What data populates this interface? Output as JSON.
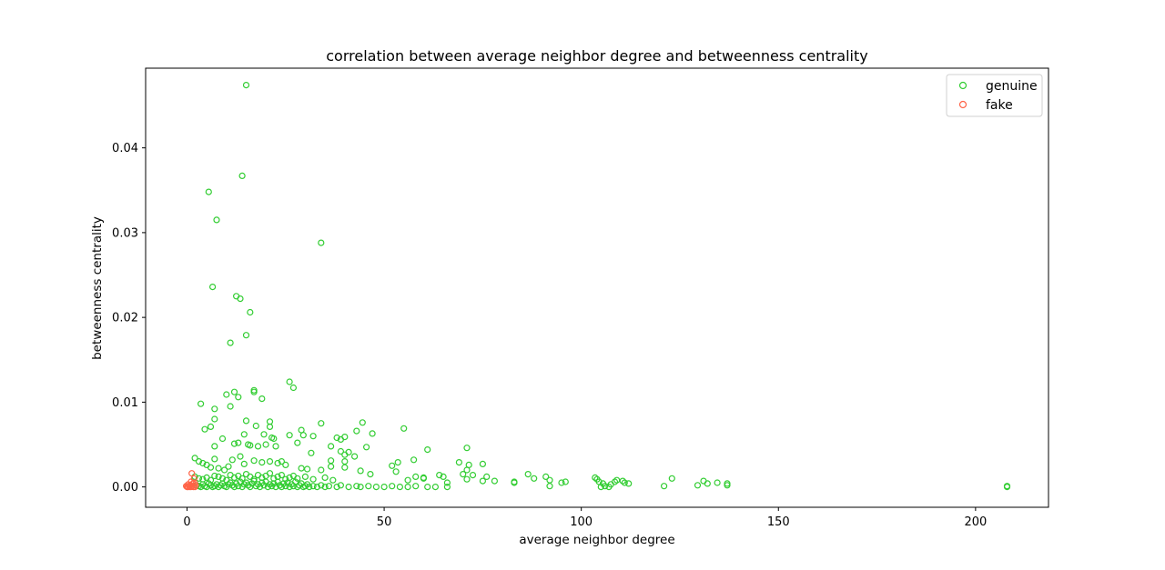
{
  "chart_data": {
    "type": "scatter",
    "title": "correlation between average neighbor degree and betweenness centrality",
    "xlabel": "average neighbor degree",
    "ylabel": "betweenness centrality",
    "xlim": [
      -10.5,
      218.5
    ],
    "ylim": [
      -0.0024,
      0.0494
    ],
    "x_ticks": [
      0,
      50,
      100,
      150,
      200
    ],
    "x_tick_labels": [
      "0",
      "50",
      "100",
      "150",
      "200"
    ],
    "y_ticks": [
      0.0,
      0.01,
      0.02,
      0.03,
      0.04
    ],
    "y_tick_labels": [
      "0.00",
      "0.01",
      "0.02",
      "0.03",
      "0.04"
    ],
    "grid": false,
    "legend": "top-right",
    "marker": "hollow-circle",
    "series": [
      {
        "name": "genuine",
        "color": "#32cd32",
        "points": [
          [
            15,
            0.0474
          ],
          [
            14,
            0.0367
          ],
          [
            5.5,
            0.0348
          ],
          [
            7.5,
            0.0315
          ],
          [
            34,
            0.0288
          ],
          [
            6.5,
            0.0236
          ],
          [
            12.5,
            0.0225
          ],
          [
            13.5,
            0.0222
          ],
          [
            16,
            0.0206
          ],
          [
            15,
            0.0179
          ],
          [
            11,
            0.017
          ],
          [
            26,
            0.0124
          ],
          [
            27,
            0.0117
          ],
          [
            17,
            0.0114
          ],
          [
            17,
            0.0112
          ],
          [
            12,
            0.0112
          ],
          [
            10,
            0.0109
          ],
          [
            13,
            0.0106
          ],
          [
            19,
            0.0104
          ],
          [
            3.5,
            0.0098
          ],
          [
            11,
            0.0095
          ],
          [
            7,
            0.0092
          ],
          [
            7,
            0.008
          ],
          [
            15,
            0.0078
          ],
          [
            21,
            0.0077
          ],
          [
            34,
            0.0075
          ],
          [
            44.5,
            0.0076
          ],
          [
            6,
            0.0071
          ],
          [
            4.5,
            0.0068
          ],
          [
            17.5,
            0.0072
          ],
          [
            21,
            0.0071
          ],
          [
            29,
            0.0067
          ],
          [
            43,
            0.0066
          ],
          [
            55,
            0.0069
          ],
          [
            14.5,
            0.0062
          ],
          [
            19.5,
            0.0062
          ],
          [
            26,
            0.0061
          ],
          [
            29.5,
            0.0061
          ],
          [
            32,
            0.006
          ],
          [
            40,
            0.0059
          ],
          [
            38,
            0.0058
          ],
          [
            47,
            0.0063
          ],
          [
            9,
            0.0057
          ],
          [
            22,
            0.0057
          ],
          [
            21.5,
            0.0058
          ],
          [
            39,
            0.0056
          ],
          [
            12,
            0.0051
          ],
          [
            13,
            0.0052
          ],
          [
            15.5,
            0.005
          ],
          [
            16,
            0.0049
          ],
          [
            18,
            0.0048
          ],
          [
            20,
            0.005
          ],
          [
            22.5,
            0.0048
          ],
          [
            28,
            0.0052
          ],
          [
            7,
            0.0048
          ],
          [
            36.5,
            0.0048
          ],
          [
            45.5,
            0.0047
          ],
          [
            61,
            0.0044
          ],
          [
            71,
            0.0046
          ],
          [
            31.5,
            0.004
          ],
          [
            39,
            0.0042
          ],
          [
            41,
            0.0041
          ],
          [
            42.5,
            0.0036
          ],
          [
            40,
            0.0038
          ],
          [
            13.5,
            0.0036
          ],
          [
            7,
            0.0033
          ],
          [
            11.5,
            0.0032
          ],
          [
            17,
            0.0031
          ],
          [
            21,
            0.003
          ],
          [
            24,
            0.003
          ],
          [
            36.5,
            0.0031
          ],
          [
            40,
            0.003
          ],
          [
            57.5,
            0.0032
          ],
          [
            52,
            0.0025
          ],
          [
            53.5,
            0.0029
          ],
          [
            69,
            0.0029
          ],
          [
            71.5,
            0.0026
          ],
          [
            75,
            0.0027
          ],
          [
            71,
            0.002
          ],
          [
            2,
            0.0034
          ],
          [
            3,
            0.003
          ],
          [
            4,
            0.0028
          ],
          [
            5,
            0.0026
          ],
          [
            6,
            0.0023
          ],
          [
            8,
            0.0022
          ],
          [
            9.5,
            0.002
          ],
          [
            10.5,
            0.0024
          ],
          [
            14.5,
            0.0027
          ],
          [
            19,
            0.0029
          ],
          [
            23,
            0.0028
          ],
          [
            25,
            0.0026
          ],
          [
            29,
            0.0022
          ],
          [
            30.5,
            0.0021
          ],
          [
            34,
            0.002
          ],
          [
            36.5,
            0.0024
          ],
          [
            40,
            0.0023
          ],
          [
            44,
            0.0019
          ],
          [
            46.5,
            0.0015
          ],
          [
            53,
            0.0018
          ],
          [
            58,
            0.0012
          ],
          [
            60,
            0.001
          ],
          [
            64,
            0.0014
          ],
          [
            65,
            0.0012
          ],
          [
            70,
            0.0015
          ],
          [
            72.5,
            0.0014
          ],
          [
            76,
            0.0012
          ],
          [
            56,
            0.0008
          ],
          [
            60,
            0.0011
          ],
          [
            66,
            0.0005
          ],
          [
            71,
            0.0009
          ],
          [
            75,
            0.0007
          ],
          [
            78,
            0.0007
          ],
          [
            86.5,
            0.0015
          ],
          [
            88,
            0.001
          ],
          [
            91,
            0.0012
          ],
          [
            92,
            0.0008
          ],
          [
            95,
            0.0005
          ],
          [
            96,
            0.0006
          ],
          [
            83,
            0.0005
          ],
          [
            83,
            0.0006
          ],
          [
            103.5,
            0.0011
          ],
          [
            104,
            0.0009
          ],
          [
            104.5,
            0.0006
          ],
          [
            105.5,
            0.0004
          ],
          [
            107.5,
            0.0003
          ],
          [
            108.5,
            0.0006
          ],
          [
            109,
            0.0008
          ],
          [
            110.5,
            0.0007
          ],
          [
            111,
            0.0005
          ],
          [
            112,
            0.0004
          ],
          [
            121,
            0.0001
          ],
          [
            123,
            0.001
          ],
          [
            129.5,
            0.0002
          ],
          [
            131,
            0.0007
          ],
          [
            132,
            0.0004
          ],
          [
            134.5,
            0.0005
          ],
          [
            137,
            0.0002
          ],
          [
            137,
            0.0004
          ],
          [
            208,
            0.0
          ],
          [
            208,
            0.0001
          ],
          [
            2,
            0.0012
          ],
          [
            3,
            0.001
          ],
          [
            4,
            0.0009
          ],
          [
            5,
            0.0011
          ],
          [
            6,
            0.0008
          ],
          [
            7,
            0.0013
          ],
          [
            8,
            0.0012
          ],
          [
            9,
            0.001
          ],
          [
            10,
            0.0008
          ],
          [
            11,
            0.0014
          ],
          [
            12,
            0.0011
          ],
          [
            13,
            0.0013
          ],
          [
            14,
            0.001
          ],
          [
            15,
            0.0015
          ],
          [
            16,
            0.0012
          ],
          [
            17,
            0.0009
          ],
          [
            18,
            0.0014
          ],
          [
            19,
            0.0011
          ],
          [
            20,
            0.0013
          ],
          [
            21,
            0.0016
          ],
          [
            22,
            0.001
          ],
          [
            23,
            0.0012
          ],
          [
            24,
            0.0014
          ],
          [
            25,
            0.0009
          ],
          [
            26,
            0.0011
          ],
          [
            27,
            0.0013
          ],
          [
            28,
            0.001
          ],
          [
            30,
            0.0012
          ],
          [
            32,
            0.0009
          ],
          [
            35,
            0.0011
          ],
          [
            37,
            0.0008
          ],
          [
            2.5,
            0.0002
          ],
          [
            3,
            0.0001
          ],
          [
            3.5,
            0.0
          ],
          [
            4,
            0.0003
          ],
          [
            4.5,
            0.0001
          ],
          [
            5,
            0.0
          ],
          [
            5.5,
            0.0004
          ],
          [
            6,
            0.0002
          ],
          [
            6.5,
            0.0
          ],
          [
            7,
            0.0001
          ],
          [
            7.5,
            0.0003
          ],
          [
            8,
            0.0
          ],
          [
            8.5,
            0.0002
          ],
          [
            9,
            0.0004
          ],
          [
            9.5,
            0.0001
          ],
          [
            10,
            0.0
          ],
          [
            10.5,
            0.0003
          ],
          [
            11,
            0.0005
          ],
          [
            11.5,
            0.0002
          ],
          [
            12,
            0.0
          ],
          [
            12.5,
            0.0004
          ],
          [
            13,
            0.0001
          ],
          [
            13.5,
            0.0006
          ],
          [
            14,
            0.0
          ],
          [
            14.5,
            0.0003
          ],
          [
            15,
            0.0005
          ],
          [
            15.5,
            0.0002
          ],
          [
            16,
            0.0
          ],
          [
            16.5,
            0.0004
          ],
          [
            17,
            0.0007
          ],
          [
            17.5,
            0.0001
          ],
          [
            18,
            0.0003
          ],
          [
            18.5,
            0.0
          ],
          [
            19,
            0.0005
          ],
          [
            19.5,
            0.0002
          ],
          [
            20,
            0.0006
          ],
          [
            20.5,
            0.0
          ],
          [
            21,
            0.0003
          ],
          [
            21.5,
            0.0001
          ],
          [
            22,
            0.0004
          ],
          [
            22.5,
            0.0
          ],
          [
            23,
            0.0006
          ],
          [
            23.5,
            0.0002
          ],
          [
            24,
            0.0
          ],
          [
            24.5,
            0.0004
          ],
          [
            25,
            0.0001
          ],
          [
            25.5,
            0.0005
          ],
          [
            26,
            0.0
          ],
          [
            26.5,
            0.0003
          ],
          [
            27,
            0.0001
          ],
          [
            27.5,
            0.0006
          ],
          [
            28,
            0.0
          ],
          [
            28.5,
            0.0002
          ],
          [
            29,
            0.0004
          ],
          [
            29.5,
            0.0
          ],
          [
            30,
            0.0001
          ],
          [
            30.5,
            0.0003
          ],
          [
            31,
            0.0
          ],
          [
            32,
            0.0001
          ],
          [
            33,
            0.0
          ],
          [
            34,
            0.0002
          ],
          [
            35,
            0.0
          ],
          [
            36,
            0.0001
          ],
          [
            38,
            0.0
          ],
          [
            39,
            0.0002
          ],
          [
            41,
            0.0
          ],
          [
            43,
            0.0001
          ],
          [
            44,
            0.0
          ],
          [
            46,
            0.0001
          ],
          [
            48,
            0.0
          ],
          [
            50,
            0.0
          ],
          [
            52,
            0.0001
          ],
          [
            54,
            0.0
          ],
          [
            56,
            0.0
          ],
          [
            58,
            0.0001
          ],
          [
            61,
            0.0
          ],
          [
            63,
            0.0
          ],
          [
            66,
            0.0
          ],
          [
            92,
            0.0001
          ],
          [
            105,
            0.0
          ],
          [
            106,
            0.0001
          ],
          [
            107,
            0.0
          ]
        ]
      },
      {
        "name": "fake",
        "color": "#ff6347",
        "points": [
          [
            1.2,
            0.0016
          ],
          [
            1.8,
            0.001
          ],
          [
            1.0,
            0.0006
          ],
          [
            1.5,
            0.0004
          ],
          [
            0.8,
            0.0002
          ],
          [
            0.5,
            0.0001
          ],
          [
            0.2,
            0.0
          ],
          [
            0.6,
            0.0
          ],
          [
            1.0,
            0.0
          ],
          [
            1.3,
            0.0001
          ],
          [
            1.6,
            0.0
          ],
          [
            2.0,
            0.0
          ],
          [
            0.0,
            0.0
          ],
          [
            -0.2,
            0.0001
          ],
          [
            0.3,
            0.0003
          ],
          [
            2.2,
            0.0002
          ],
          [
            1.9,
            0.0005
          ]
        ]
      }
    ]
  }
}
